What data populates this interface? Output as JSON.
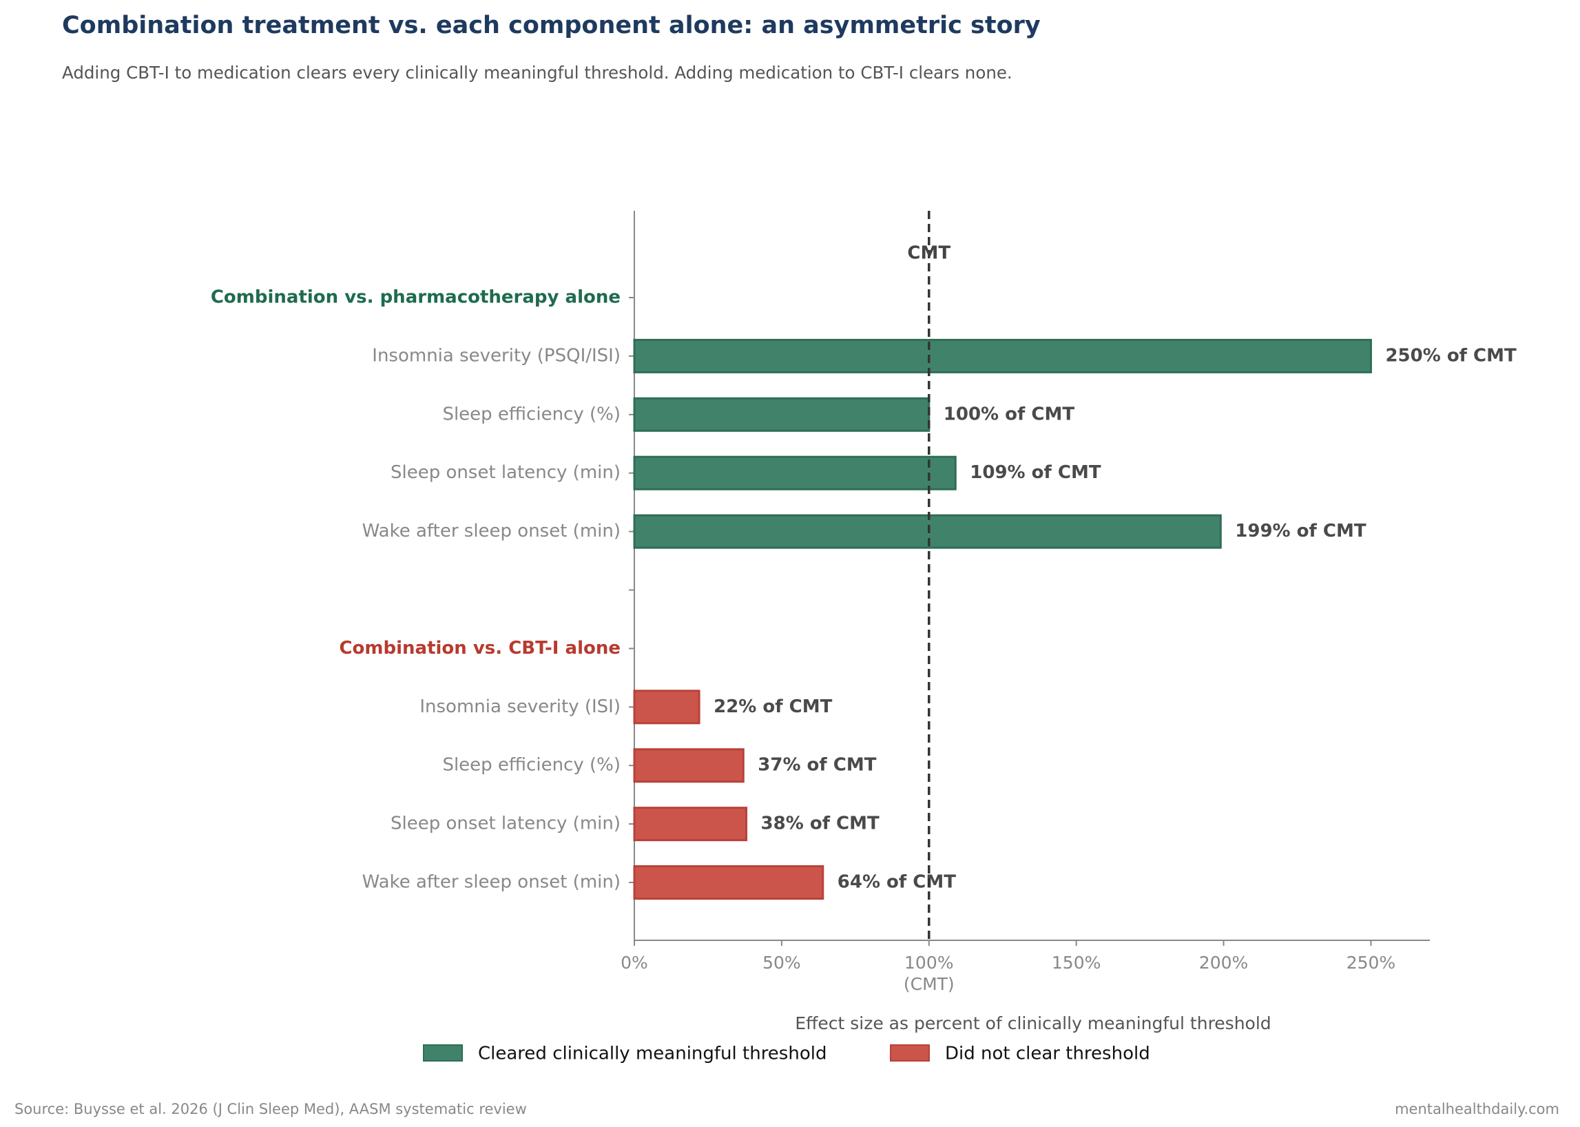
{
  "chart_data": {
    "type": "hbar",
    "title": "Combination treatment vs. each component alone: an asymmetric story",
    "subtitle": "Adding CBT-I to medication clears every clinically meaningful threshold. Adding medication to CBT-I clears none.",
    "xlabel": "Effect size as percent of clinically meaningful threshold",
    "categories": [
      "Combination vs. pharmacotherapy alone",
      "Insomnia severity (PSQI/ISI)",
      "Sleep efficiency (%)",
      "Sleep onset latency (min)",
      "Wake after sleep onset (min)",
      null,
      "Combination vs. CBT-I alone",
      "Insomnia severity (ISI)",
      "Sleep efficiency (%)",
      "Sleep onset latency (min)",
      "Wake after sleep onset (min)"
    ],
    "series": [
      {
        "name": "Cleared clinically meaningful threshold",
        "color": "#41836a",
        "header_color": "#1e6b4e",
        "values": [
          null,
          250,
          100,
          109,
          199,
          null,
          null,
          null,
          null,
          null,
          null
        ],
        "value_labels": [
          null,
          "250% of CMT",
          "100% of CMT",
          "109% of CMT",
          "199% of CMT",
          null,
          null,
          null,
          null,
          null,
          null
        ]
      },
      {
        "name": "Did not clear threshold",
        "color": "#cb554a",
        "header_color": "#b83a2e",
        "values": [
          null,
          null,
          null,
          null,
          null,
          null,
          null,
          22,
          37,
          38,
          64
        ],
        "value_labels": [
          null,
          null,
          null,
          null,
          null,
          null,
          null,
          "22% of CMT",
          "37% of CMT",
          "38% of CMT",
          "64% of CMT"
        ]
      }
    ],
    "xlim": [
      0,
      270
    ],
    "xticks": [
      {
        "value": 0,
        "label": "0%"
      },
      {
        "value": 50,
        "label": "50%"
      },
      {
        "value": 100,
        "label": "100%\n(CMT)"
      },
      {
        "value": 150,
        "label": "150%"
      },
      {
        "value": 200,
        "label": "200%"
      },
      {
        "value": 250,
        "label": "250%"
      }
    ],
    "reference_line": {
      "value": 100,
      "label": "CMT"
    },
    "legend": "bottom",
    "source": "Source: Buysse et al. 2026 (J Clin Sleep Med), AASM systematic review",
    "credit": "mentalhealthdaily.com"
  }
}
